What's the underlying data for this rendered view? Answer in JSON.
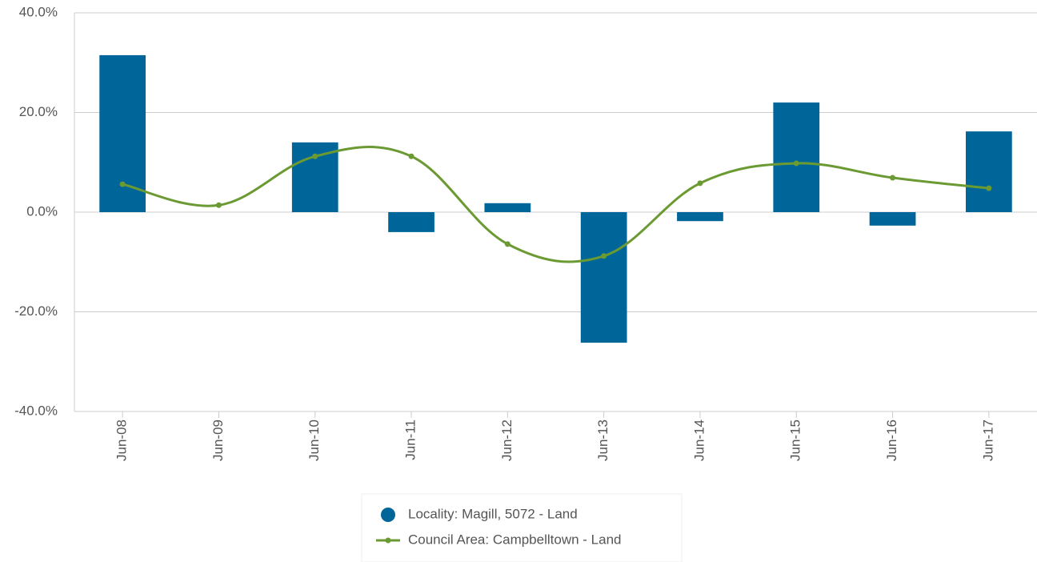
{
  "chart_data": {
    "type": "bar",
    "categories": [
      "Jun-08",
      "Jun-09",
      "Jun-10",
      "Jun-11",
      "Jun-12",
      "Jun-13",
      "Jun-14",
      "Jun-15",
      "Jun-16",
      "Jun-17"
    ],
    "series": [
      {
        "name": "Locality: Magill, 5072 - Land",
        "type": "bar",
        "color": "#006699",
        "values": [
          31.5,
          0,
          14.0,
          -4.0,
          1.8,
          -26.2,
          -1.8,
          22.0,
          -2.7,
          16.2
        ]
      },
      {
        "name": "Council Area: Campbelltown - Land",
        "type": "line",
        "color": "#6b9a33",
        "values": [
          5.6,
          1.4,
          11.2,
          11.2,
          -6.4,
          -8.8,
          5.8,
          9.8,
          6.9,
          4.8
        ]
      }
    ],
    "ylim": [
      -40,
      40
    ],
    "yticks": [
      {
        "value": -40,
        "label": "-40.0%"
      },
      {
        "value": -20,
        "label": "-20.0%"
      },
      {
        "value": 0,
        "label": "0.0%"
      },
      {
        "value": 20,
        "label": "20.0%"
      },
      {
        "value": 40,
        "label": "40.0%"
      }
    ],
    "grid": true,
    "legend": "bottom"
  }
}
